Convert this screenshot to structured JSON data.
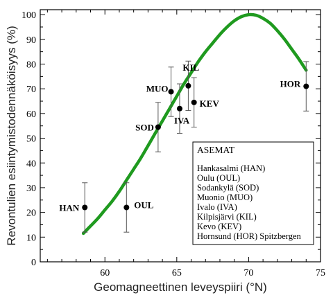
{
  "chart_data": {
    "type": "scatter",
    "xlabel": "Geomagneettinen leveyspiiri (°N)",
    "ylabel": "Revontulien esiintymistodennäköisyys (%)",
    "xlim": [
      55.5,
      75
    ],
    "ylim": [
      0,
      102
    ],
    "x_ticks": [
      60,
      65,
      70,
      75
    ],
    "y_ticks": [
      0,
      10,
      20,
      30,
      40,
      50,
      60,
      70,
      80,
      90,
      100
    ],
    "grid": false,
    "points": [
      {
        "label": "HAN",
        "x": 58.6,
        "y": 22,
        "err_low": 10,
        "err_high": 10
      },
      {
        "label": "OUL",
        "x": 61.5,
        "y": 22,
        "err_low": 10,
        "err_high": 10
      },
      {
        "label": "SOD",
        "x": 63.7,
        "y": 54.5,
        "err_low": 10,
        "err_high": 10
      },
      {
        "label": "MUO",
        "x": 64.6,
        "y": 68.8,
        "err_low": 10,
        "err_high": 10
      },
      {
        "label": "IVA",
        "x": 65.2,
        "y": 62,
        "err_low": 10,
        "err_high": 10
      },
      {
        "label": "KIL",
        "x": 65.8,
        "y": 71.2,
        "err_low": 10,
        "err_high": 10
      },
      {
        "label": "KEV",
        "x": 66.2,
        "y": 64.5,
        "err_low": 10,
        "err_high": 10
      },
      {
        "label": "HOR",
        "x": 74.0,
        "y": 71,
        "err_low": 10,
        "err_high": 10
      }
    ],
    "curve": {
      "color": "#1f9a1f",
      "points": [
        [
          58.5,
          11.5
        ],
        [
          59,
          14.5
        ],
        [
          59.5,
          17.5
        ],
        [
          60,
          21
        ],
        [
          60.5,
          24.5
        ],
        [
          61,
          28.5
        ],
        [
          61.5,
          33
        ],
        [
          62,
          37.5
        ],
        [
          62.5,
          42
        ],
        [
          63,
          47
        ],
        [
          63.5,
          52
        ],
        [
          64,
          57
        ],
        [
          64.5,
          62
        ],
        [
          65,
          67
        ],
        [
          65.5,
          72
        ],
        [
          66,
          76.5
        ],
        [
          66.5,
          81
        ],
        [
          67,
          85
        ],
        [
          67.5,
          88.5
        ],
        [
          68,
          92
        ],
        [
          68.5,
          95
        ],
        [
          69,
          97.5
        ],
        [
          69.5,
          99.2
        ],
        [
          70,
          100
        ],
        [
          70.5,
          99.8
        ],
        [
          71,
          98.5
        ],
        [
          71.5,
          96.5
        ],
        [
          72,
          93.5
        ],
        [
          72.5,
          90
        ],
        [
          73,
          86
        ],
        [
          73.5,
          82
        ],
        [
          74,
          77.5
        ]
      ]
    },
    "legend": {
      "title": "ASEMAT",
      "items": [
        "Hankasalmi (HAN)",
        "Oulu (OUL)",
        "Sodankylä (SOD)",
        "Muonio (MUO)",
        "Ivalo (IVA)",
        "Kilpisjärvi (KIL)",
        "Kevo (KEV)",
        "Hornsund (HOR) Spitzbergen"
      ]
    }
  }
}
